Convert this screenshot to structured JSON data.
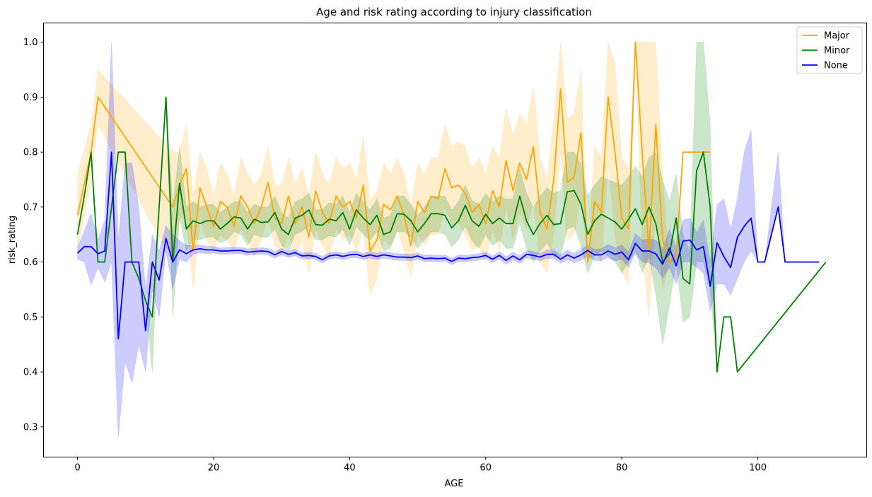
{
  "chart_data": {
    "type": "line",
    "title": "Age and risk rating according to injury classification",
    "xlabel": "AGE",
    "ylabel": "risk_rating",
    "xlim": [
      -5,
      116
    ],
    "ylim": [
      0.245,
      1.035
    ],
    "xticks": [
      0,
      20,
      40,
      60,
      80,
      100
    ],
    "xtick_labels": [
      "0",
      "20",
      "40",
      "60",
      "80",
      "100"
    ],
    "yticks": [
      0.3,
      0.4,
      0.5,
      0.6,
      0.7,
      0.8,
      0.9,
      1.0
    ],
    "ytick_labels": [
      "0.3",
      "0.4",
      "0.5",
      "0.6",
      "0.7",
      "0.8",
      "0.9",
      "1.0"
    ],
    "grid": false,
    "legend_position": "top-right",
    "series": [
      {
        "name": "Major",
        "color": "#ffa500",
        "x": [
          0,
          2,
          3,
          14,
          15,
          16,
          17,
          18,
          19,
          20,
          21,
          22,
          23,
          24,
          25,
          26,
          27,
          28,
          29,
          30,
          31,
          32,
          33,
          34,
          35,
          36,
          37,
          38,
          39,
          40,
          41,
          42,
          43,
          44,
          45,
          46,
          47,
          48,
          49,
          50,
          51,
          52,
          53,
          54,
          55,
          56,
          57,
          58,
          59,
          60,
          61,
          62,
          63,
          64,
          65,
          66,
          67,
          68,
          69,
          70,
          71,
          72,
          73,
          74,
          75,
          76,
          77,
          78,
          79,
          80,
          81,
          82,
          83,
          84,
          85,
          86,
          87,
          88,
          89,
          90,
          91,
          92,
          93
        ],
        "y": [
          0.685,
          0.8,
          0.9,
          0.7,
          0.74,
          0.77,
          0.62,
          0.735,
          0.7,
          0.665,
          0.71,
          0.7,
          0.665,
          0.72,
          0.7,
          0.67,
          0.7,
          0.745,
          0.68,
          0.67,
          0.72,
          0.67,
          0.7,
          0.645,
          0.73,
          0.69,
          0.67,
          0.72,
          0.7,
          0.71,
          0.68,
          0.74,
          0.62,
          0.64,
          0.705,
          0.695,
          0.72,
          0.685,
          0.63,
          0.71,
          0.69,
          0.72,
          0.715,
          0.77,
          0.735,
          0.74,
          0.725,
          0.69,
          0.705,
          0.67,
          0.73,
          0.7,
          0.785,
          0.73,
          0.78,
          0.75,
          0.81,
          0.69,
          0.66,
          0.75,
          0.915,
          0.745,
          0.755,
          0.835,
          0.6,
          0.71,
          0.69,
          0.9,
          0.8,
          0.68,
          0.66,
          1.0,
          0.8,
          0.62,
          0.85,
          0.64,
          0.6,
          0.61,
          0.8,
          0.8,
          0.8,
          0.8,
          0.8
        ],
        "ci_low": [
          0.62,
          0.75,
          0.85,
          0.6,
          0.68,
          0.68,
          0.55,
          0.68,
          0.64,
          0.62,
          0.65,
          0.64,
          0.62,
          0.66,
          0.64,
          0.61,
          0.64,
          0.68,
          0.63,
          0.61,
          0.65,
          0.61,
          0.64,
          0.58,
          0.66,
          0.63,
          0.61,
          0.66,
          0.64,
          0.65,
          0.62,
          0.66,
          0.54,
          0.57,
          0.64,
          0.63,
          0.66,
          0.62,
          0.57,
          0.65,
          0.63,
          0.65,
          0.65,
          0.7,
          0.67,
          0.67,
          0.65,
          0.62,
          0.63,
          0.6,
          0.66,
          0.62,
          0.7,
          0.64,
          0.69,
          0.66,
          0.71,
          0.6,
          0.58,
          0.65,
          0.8,
          0.64,
          0.65,
          0.72,
          0.6,
          0.62,
          0.6,
          0.78,
          0.65,
          0.58,
          0.56,
          1.0,
          0.62,
          0.5,
          0.7,
          0.55,
          0.6,
          0.6,
          0.8,
          0.8,
          0.8,
          0.8,
          0.8
        ],
        "ci_high": [
          0.76,
          0.85,
          0.95,
          0.8,
          0.8,
          0.85,
          0.72,
          0.8,
          0.77,
          0.72,
          0.78,
          0.76,
          0.72,
          0.79,
          0.76,
          0.74,
          0.76,
          0.81,
          0.74,
          0.74,
          0.79,
          0.74,
          0.77,
          0.72,
          0.8,
          0.76,
          0.74,
          0.79,
          0.77,
          0.78,
          0.75,
          0.83,
          0.71,
          0.73,
          0.78,
          0.76,
          0.79,
          0.76,
          0.7,
          0.78,
          0.76,
          0.79,
          0.79,
          0.85,
          0.81,
          0.82,
          0.81,
          0.77,
          0.79,
          0.76,
          0.81,
          0.79,
          0.88,
          0.83,
          0.87,
          0.85,
          0.92,
          0.79,
          0.75,
          0.86,
          1.0,
          0.86,
          0.87,
          0.95,
          0.6,
          0.81,
          0.79,
          1.0,
          0.96,
          0.79,
          0.77,
          1.0,
          1.0,
          1.0,
          1.0,
          0.75,
          0.6,
          0.62,
          0.8,
          0.8,
          0.8,
          0.8,
          0.8
        ]
      },
      {
        "name": "Minor",
        "color": "#008000",
        "x": [
          0,
          1,
          2,
          3,
          4,
          5,
          6,
          7,
          8,
          9,
          10,
          11,
          12,
          13,
          14,
          15,
          16,
          17,
          18,
          19,
          20,
          21,
          22,
          23,
          24,
          25,
          26,
          27,
          28,
          29,
          30,
          31,
          32,
          33,
          34,
          35,
          36,
          37,
          38,
          39,
          40,
          41,
          42,
          43,
          44,
          45,
          46,
          47,
          48,
          49,
          50,
          51,
          52,
          53,
          54,
          55,
          56,
          57,
          58,
          59,
          60,
          61,
          62,
          63,
          64,
          65,
          66,
          67,
          68,
          69,
          70,
          71,
          72,
          73,
          74,
          75,
          76,
          77,
          78,
          79,
          80,
          81,
          82,
          83,
          84,
          85,
          86,
          87,
          88,
          89,
          90,
          91,
          92,
          93,
          94,
          95,
          96,
          97,
          110
        ],
        "y": [
          0.65,
          0.72,
          0.8,
          0.6,
          0.6,
          0.7,
          0.8,
          0.8,
          0.6,
          0.57,
          0.53,
          0.5,
          0.7,
          0.9,
          0.6,
          0.743,
          0.66,
          0.675,
          0.67,
          0.675,
          0.675,
          0.66,
          0.67,
          0.682,
          0.68,
          0.66,
          0.678,
          0.672,
          0.673,
          0.69,
          0.66,
          0.65,
          0.68,
          0.685,
          0.695,
          0.668,
          0.667,
          0.678,
          0.675,
          0.69,
          0.66,
          0.695,
          0.68,
          0.668,
          0.685,
          0.65,
          0.655,
          0.688,
          0.687,
          0.675,
          0.655,
          0.67,
          0.688,
          0.688,
          0.685,
          0.662,
          0.675,
          0.703,
          0.675,
          0.665,
          0.687,
          0.67,
          0.68,
          0.67,
          0.67,
          0.72,
          0.675,
          0.65,
          0.67,
          0.685,
          0.668,
          0.67,
          0.728,
          0.73,
          0.705,
          0.65,
          0.675,
          0.687,
          0.68,
          0.673,
          0.66,
          0.678,
          0.697,
          0.668,
          0.7,
          0.67,
          0.6,
          0.615,
          0.68,
          0.57,
          0.56,
          0.766,
          0.8,
          0.7,
          0.4,
          0.5,
          0.5,
          0.4,
          0.6
        ],
        "ci_low": [
          0.65,
          0.72,
          0.8,
          0.6,
          0.6,
          0.7,
          0.8,
          0.8,
          0.6,
          0.57,
          0.53,
          0.4,
          0.7,
          0.9,
          0.5,
          0.68,
          0.62,
          0.64,
          0.64,
          0.645,
          0.645,
          0.635,
          0.64,
          0.655,
          0.65,
          0.63,
          0.65,
          0.645,
          0.645,
          0.66,
          0.63,
          0.62,
          0.65,
          0.655,
          0.665,
          0.64,
          0.64,
          0.648,
          0.645,
          0.66,
          0.63,
          0.665,
          0.65,
          0.64,
          0.655,
          0.62,
          0.625,
          0.655,
          0.655,
          0.645,
          0.625,
          0.64,
          0.655,
          0.655,
          0.65,
          0.628,
          0.64,
          0.665,
          0.638,
          0.625,
          0.65,
          0.63,
          0.64,
          0.625,
          0.625,
          0.67,
          0.625,
          0.6,
          0.62,
          0.635,
          0.61,
          0.61,
          0.66,
          0.665,
          0.63,
          0.58,
          0.61,
          0.62,
          0.61,
          0.6,
          0.58,
          0.6,
          0.62,
          0.58,
          0.61,
          0.54,
          0.45,
          0.52,
          0.6,
          0.49,
          0.5,
          0.6,
          0.6,
          0.55,
          0.4,
          0.5,
          0.5,
          0.4,
          0.6
        ],
        "ci_high": [
          0.65,
          0.72,
          0.8,
          0.6,
          0.6,
          0.7,
          0.8,
          0.8,
          0.6,
          0.57,
          0.53,
          0.5,
          0.7,
          0.9,
          0.7,
          0.81,
          0.7,
          0.71,
          0.7,
          0.705,
          0.705,
          0.69,
          0.7,
          0.71,
          0.71,
          0.69,
          0.705,
          0.7,
          0.7,
          0.72,
          0.69,
          0.68,
          0.71,
          0.715,
          0.725,
          0.695,
          0.695,
          0.708,
          0.705,
          0.72,
          0.69,
          0.725,
          0.71,
          0.695,
          0.715,
          0.68,
          0.685,
          0.72,
          0.72,
          0.705,
          0.685,
          0.7,
          0.72,
          0.72,
          0.72,
          0.695,
          0.71,
          0.74,
          0.712,
          0.705,
          0.725,
          0.71,
          0.72,
          0.715,
          0.715,
          0.77,
          0.725,
          0.7,
          0.72,
          0.735,
          0.725,
          0.73,
          0.8,
          0.8,
          0.78,
          0.72,
          0.74,
          0.755,
          0.75,
          0.745,
          0.74,
          0.756,
          0.774,
          0.755,
          0.79,
          0.8,
          0.75,
          0.71,
          0.76,
          0.65,
          0.62,
          1.0,
          1.0,
          0.85,
          0.4,
          0.5,
          0.5,
          0.4,
          0.6
        ]
      },
      {
        "name": "None",
        "color": "#0000ff",
        "x": [
          0,
          1,
          2,
          3,
          4,
          5,
          6,
          7,
          8,
          9,
          10,
          11,
          12,
          13,
          14,
          15,
          16,
          17,
          18,
          19,
          20,
          21,
          22,
          23,
          24,
          25,
          26,
          27,
          28,
          29,
          30,
          31,
          32,
          33,
          34,
          35,
          36,
          37,
          38,
          39,
          40,
          41,
          42,
          43,
          44,
          45,
          46,
          47,
          48,
          49,
          50,
          51,
          52,
          53,
          54,
          55,
          56,
          57,
          58,
          59,
          60,
          61,
          62,
          63,
          64,
          65,
          66,
          67,
          68,
          69,
          70,
          71,
          72,
          73,
          74,
          75,
          76,
          77,
          78,
          79,
          80,
          81,
          82,
          83,
          84,
          85,
          86,
          87,
          88,
          89,
          90,
          91,
          92,
          93,
          94,
          95,
          96,
          97,
          98,
          99,
          100,
          101,
          103,
          104,
          105,
          109
        ],
        "y": [
          0.616,
          0.628,
          0.628,
          0.615,
          0.62,
          0.8,
          0.46,
          0.6,
          0.6,
          0.6,
          0.475,
          0.6,
          0.567,
          0.643,
          0.6,
          0.622,
          0.615,
          0.622,
          0.624,
          0.622,
          0.622,
          0.62,
          0.62,
          0.621,
          0.621,
          0.618,
          0.619,
          0.62,
          0.619,
          0.613,
          0.619,
          0.614,
          0.617,
          0.611,
          0.612,
          0.61,
          0.604,
          0.611,
          0.613,
          0.61,
          0.613,
          0.614,
          0.61,
          0.613,
          0.61,
          0.613,
          0.611,
          0.609,
          0.609,
          0.608,
          0.611,
          0.606,
          0.607,
          0.606,
          0.607,
          0.601,
          0.607,
          0.606,
          0.608,
          0.609,
          0.612,
          0.605,
          0.612,
          0.603,
          0.611,
          0.604,
          0.614,
          0.612,
          0.609,
          0.614,
          0.614,
          0.605,
          0.613,
          0.607,
          0.613,
          0.621,
          0.613,
          0.613,
          0.62,
          0.614,
          0.618,
          0.604,
          0.634,
          0.62,
          0.62,
          0.615,
          0.596,
          0.625,
          0.593,
          0.638,
          0.64,
          0.622,
          0.628,
          0.556,
          0.635,
          0.61,
          0.59,
          0.645,
          0.665,
          0.68,
          0.6,
          0.6,
          0.7,
          0.6,
          0.6,
          0.6
        ],
        "ci_low": [
          0.605,
          0.6,
          0.558,
          0.59,
          0.564,
          0.6,
          0.28,
          0.42,
          0.38,
          0.45,
          0.4,
          0.55,
          0.5,
          0.62,
          0.55,
          0.605,
          0.6,
          0.614,
          0.617,
          0.615,
          0.616,
          0.614,
          0.614,
          0.615,
          0.615,
          0.612,
          0.613,
          0.614,
          0.613,
          0.607,
          0.613,
          0.608,
          0.611,
          0.605,
          0.606,
          0.604,
          0.598,
          0.605,
          0.607,
          0.604,
          0.607,
          0.608,
          0.604,
          0.607,
          0.604,
          0.607,
          0.605,
          0.603,
          0.603,
          0.602,
          0.605,
          0.6,
          0.601,
          0.6,
          0.601,
          0.595,
          0.601,
          0.6,
          0.602,
          0.603,
          0.606,
          0.599,
          0.605,
          0.596,
          0.604,
          0.597,
          0.607,
          0.605,
          0.602,
          0.606,
          0.606,
          0.597,
          0.604,
          0.598,
          0.603,
          0.611,
          0.603,
          0.602,
          0.608,
          0.602,
          0.605,
          0.59,
          0.616,
          0.6,
          0.598,
          0.59,
          0.57,
          0.59,
          0.56,
          0.6,
          0.6,
          0.59,
          0.58,
          0.51,
          0.56,
          0.56,
          0.54,
          0.57,
          0.6,
          0.62,
          0.6,
          0.6,
          0.7,
          0.6,
          0.6,
          0.6
        ],
        "ci_high": [
          0.627,
          0.656,
          0.688,
          0.64,
          0.676,
          1.0,
          0.64,
          0.78,
          0.78,
          0.7,
          0.55,
          0.65,
          0.62,
          0.666,
          0.65,
          0.639,
          0.63,
          0.63,
          0.631,
          0.629,
          0.628,
          0.626,
          0.626,
          0.627,
          0.627,
          0.624,
          0.625,
          0.626,
          0.625,
          0.619,
          0.625,
          0.62,
          0.623,
          0.617,
          0.618,
          0.616,
          0.61,
          0.617,
          0.619,
          0.616,
          0.619,
          0.62,
          0.616,
          0.619,
          0.616,
          0.619,
          0.617,
          0.615,
          0.615,
          0.614,
          0.617,
          0.612,
          0.613,
          0.612,
          0.613,
          0.607,
          0.613,
          0.612,
          0.614,
          0.615,
          0.618,
          0.611,
          0.619,
          0.61,
          0.618,
          0.611,
          0.621,
          0.619,
          0.616,
          0.622,
          0.622,
          0.613,
          0.622,
          0.616,
          0.623,
          0.631,
          0.623,
          0.624,
          0.632,
          0.626,
          0.631,
          0.618,
          0.652,
          0.64,
          0.642,
          0.64,
          0.622,
          0.66,
          0.626,
          0.676,
          0.68,
          0.654,
          0.676,
          0.6,
          0.705,
          0.715,
          0.66,
          0.715,
          0.8,
          0.84,
          0.6,
          0.6,
          0.8,
          0.6,
          0.6,
          0.6
        ]
      }
    ]
  }
}
